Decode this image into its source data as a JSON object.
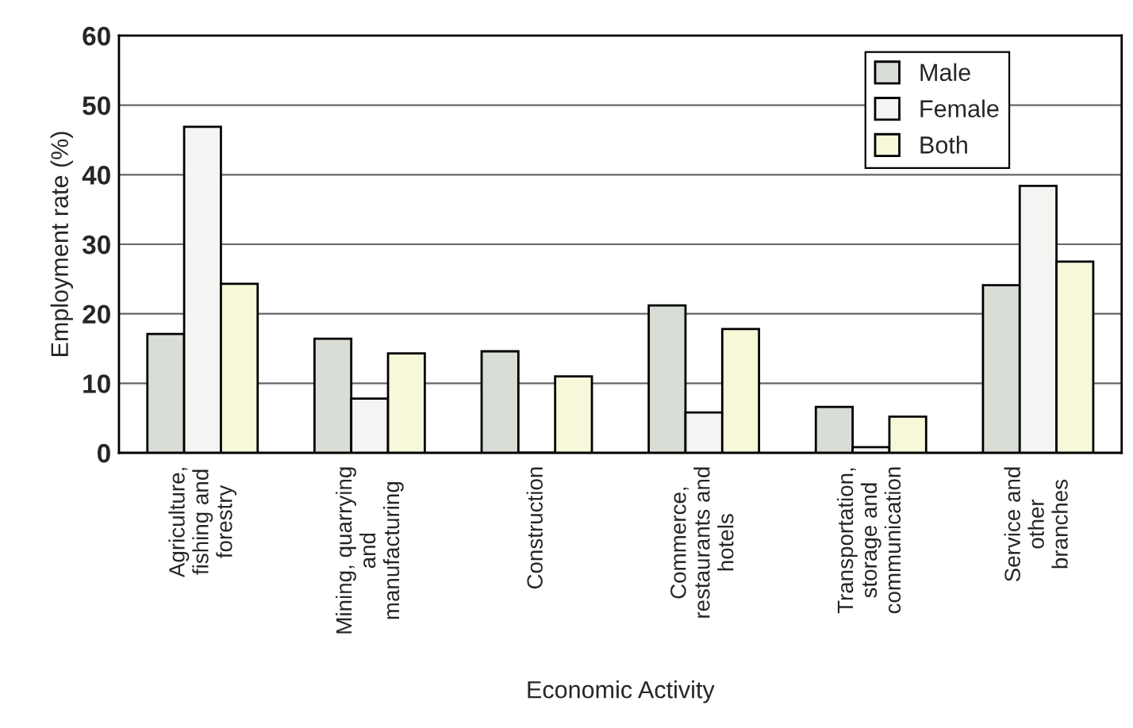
{
  "chart_data": {
    "type": "bar",
    "xlabel": "Economic Activity",
    "ylabel": "Employment rate (%)",
    "categories": [
      "Agriculture,\nfishing and\nforestry",
      "Mining, quarrying\nand\nmanufacturing",
      "Construction",
      "Commerce,\nrestaurants and\nhotels",
      "Transportation,\nstorage and\ncommunication",
      "Service and\nother\nbranches"
    ],
    "series": [
      {
        "name": "Male",
        "color": "#d8ddd5",
        "values": [
          17.1,
          16.4,
          14.6,
          21.2,
          6.6,
          24.1
        ]
      },
      {
        "name": "Female",
        "color": "#f4f5f2",
        "values": [
          46.9,
          7.8,
          0,
          5.8,
          0.8,
          38.4
        ]
      },
      {
        "name": "Both",
        "color": "#f7f7da",
        "values": [
          24.3,
          14.3,
          11.0,
          17.8,
          5.2,
          27.5
        ]
      }
    ],
    "ylim": [
      0,
      60
    ],
    "yticks": [
      0,
      10,
      20,
      30,
      40,
      50,
      60
    ],
    "grid": "y",
    "legend": "top right"
  }
}
